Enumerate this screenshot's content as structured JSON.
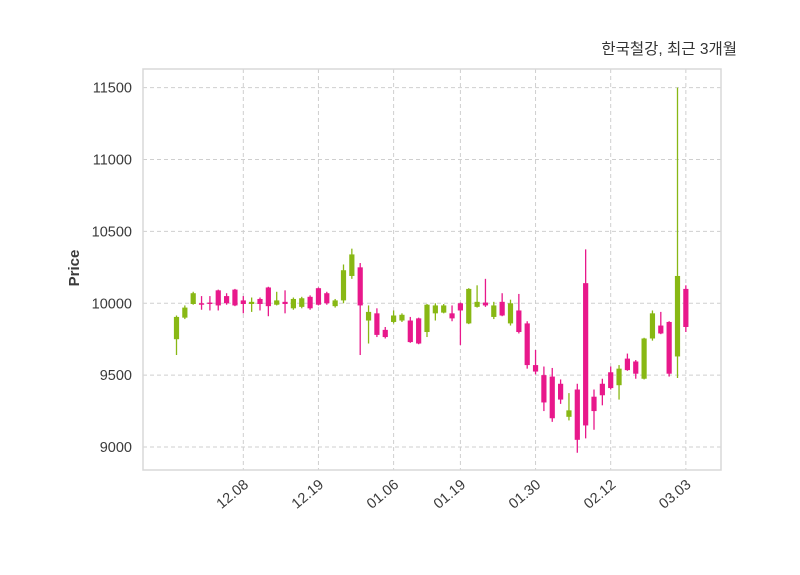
{
  "chart_data": {
    "type": "candlestick",
    "title": "한국철강, 최근 3개월",
    "ylabel": "Price",
    "ylim": [
      8840,
      11630
    ],
    "yticks": [
      9000,
      9500,
      10000,
      10500,
      11000,
      11500
    ],
    "xticks": [
      {
        "index": 8,
        "label": "12.08"
      },
      {
        "index": 17,
        "label": "12.19"
      },
      {
        "index": 26,
        "label": "01.06"
      },
      {
        "index": 34,
        "label": "01.19"
      },
      {
        "index": 43,
        "label": "01.30"
      },
      {
        "index": 52,
        "label": "02.12"
      },
      {
        "index": 61,
        "label": "03.03"
      }
    ],
    "grid": true,
    "legend": "none",
    "candle_columns": [
      "open",
      "high",
      "low",
      "close"
    ],
    "candles": [
      [
        9750,
        9915,
        9640,
        9905
      ],
      [
        9900,
        9985,
        9890,
        9970
      ],
      [
        9995,
        10080,
        9990,
        10070
      ],
      [
        10000,
        10050,
        9955,
        9990
      ],
      [
        10005,
        10050,
        9950,
        9995
      ],
      [
        10090,
        10095,
        9950,
        9985
      ],
      [
        10050,
        10070,
        9990,
        10000
      ],
      [
        10095,
        10100,
        9980,
        9985
      ],
      [
        10020,
        10050,
        9930,
        9995
      ],
      [
        9995,
        10040,
        9940,
        10010
      ],
      [
        10030,
        10040,
        9950,
        9995
      ],
      [
        10110,
        10115,
        9910,
        9980
      ],
      [
        9990,
        10080,
        9985,
        10020
      ],
      [
        10010,
        10090,
        9930,
        9995
      ],
      [
        9965,
        10040,
        9955,
        10030
      ],
      [
        9975,
        10045,
        9965,
        10035
      ],
      [
        10045,
        10055,
        9955,
        9965
      ],
      [
        10105,
        10110,
        9985,
        9990
      ],
      [
        10070,
        10080,
        9990,
        10000
      ],
      [
        9980,
        10030,
        9970,
        10020
      ],
      [
        10020,
        10270,
        10000,
        10230
      ],
      [
        10190,
        10380,
        10170,
        10340
      ],
      [
        10250,
        10280,
        9640,
        9985
      ],
      [
        9880,
        9985,
        9720,
        9940
      ],
      [
        9930,
        9965,
        9765,
        9780
      ],
      [
        9815,
        9835,
        9755,
        9765
      ],
      [
        9870,
        9950,
        9860,
        9915
      ],
      [
        9880,
        9930,
        9870,
        9920
      ],
      [
        9880,
        9905,
        9725,
        9730
      ],
      [
        9895,
        9900,
        9715,
        9720
      ],
      [
        9800,
        9995,
        9765,
        9990
      ],
      [
        9930,
        10000,
        9880,
        9985
      ],
      [
        9935,
        9995,
        9930,
        9985
      ],
      [
        9930,
        9985,
        9875,
        9895
      ],
      [
        10000,
        10005,
        9710,
        9950
      ],
      [
        9860,
        10105,
        9855,
        10100
      ],
      [
        9975,
        10125,
        9970,
        10010
      ],
      [
        10005,
        10170,
        9975,
        9985
      ],
      [
        9905,
        10010,
        9890,
        9985
      ],
      [
        10010,
        10070,
        9910,
        9915
      ],
      [
        9860,
        10025,
        9845,
        10000
      ],
      [
        9950,
        10065,
        9790,
        9800
      ],
      [
        9860,
        9875,
        9545,
        9570
      ],
      [
        9570,
        9675,
        9505,
        9525
      ],
      [
        9500,
        9560,
        9250,
        9310
      ],
      [
        9490,
        9550,
        9175,
        9200
      ],
      [
        9440,
        9470,
        9300,
        9330
      ],
      [
        9210,
        9375,
        9185,
        9255
      ],
      [
        9400,
        9440,
        8960,
        9050
      ],
      [
        10140,
        10375,
        9060,
        9150
      ],
      [
        9350,
        9400,
        9120,
        9250
      ],
      [
        9440,
        9475,
        9290,
        9360
      ],
      [
        9520,
        9560,
        9400,
        9410
      ],
      [
        9430,
        9570,
        9330,
        9545
      ],
      [
        9615,
        9650,
        9530,
        9535
      ],
      [
        9595,
        9605,
        9475,
        9510
      ],
      [
        9475,
        9760,
        9470,
        9755
      ],
      [
        9755,
        9950,
        9740,
        9930
      ],
      [
        9845,
        9940,
        9785,
        9790
      ],
      [
        9870,
        9875,
        9490,
        9510
      ],
      [
        9630,
        11500,
        9480,
        10190
      ],
      [
        10100,
        10125,
        9800,
        9835
      ]
    ],
    "colors": {
      "up": "#88b814",
      "down": "#e8188b",
      "grid": "#cfcfcf",
      "border": "#d8d8d8",
      "text": "#3a3a3a",
      "background": "#ffffff"
    }
  }
}
